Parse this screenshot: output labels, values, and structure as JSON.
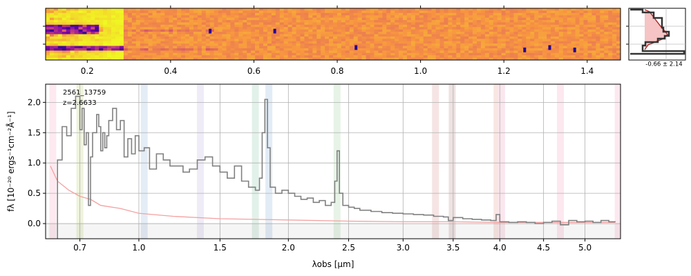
{
  "chart_data": [
    {
      "type": "heatmap",
      "panel": "2d-spectrum",
      "xlabel": "",
      "xlim": [
        0.1,
        1.48
      ],
      "xticks": [
        0.2,
        0.4,
        0.6,
        0.8,
        1.0,
        1.2,
        1.4
      ],
      "xtick_labels": [
        "0.2",
        "0.4",
        "0.6",
        "0.8",
        "1.0",
        "1.2",
        "1.4"
      ],
      "rows": 22,
      "colormap": "plasma",
      "features": [
        {
          "x": 0.495,
          "row": 9,
          "note": "dark emission knot"
        },
        {
          "x": 0.65,
          "row": 9,
          "note": "dark emission knot"
        },
        {
          "x": 0.845,
          "row": 16,
          "note": "dark pixel"
        },
        {
          "x": 1.25,
          "row": 17,
          "note": "dark pixel"
        },
        {
          "x": 1.31,
          "row": 16,
          "note": "dark pixel"
        },
        {
          "x": 1.37,
          "row": 17,
          "note": "dark pixel"
        }
      ]
    },
    {
      "type": "line",
      "panel": "spatial-profile",
      "annotation": "-0.66 ± 2.14",
      "peak_value": -0.66,
      "width_value": 2.14
    },
    {
      "type": "line",
      "panel": "1d-spectrum",
      "title": "",
      "xlabel": "λobs [μm]",
      "ylabel": "fλ [10⁻²⁰ ergs⁻¹cm⁻²Å⁻¹]",
      "xlim": [
        0.55,
        5.45
      ],
      "ylim": [
        -0.25,
        2.3
      ],
      "x_scale": "sqrt",
      "xticks": [
        0.7,
        1.0,
        1.5,
        2.0,
        2.5,
        3.0,
        3.5,
        4.0,
        4.5,
        5.0
      ],
      "xtick_labels": [
        "0.7",
        "1.0",
        "1.5",
        "2.0",
        "2.5",
        "3.0",
        "3.5",
        "4.0",
        "4.5",
        "5.0"
      ],
      "yticks": [
        0.0,
        0.5,
        1.0,
        1.5,
        2.0
      ],
      "ytick_labels": [
        "0.0",
        "0.5",
        "1.0",
        "1.5",
        "2.0"
      ],
      "grid": true,
      "annotations": [
        "2561_13759",
        "z=2.6633"
      ],
      "series": [
        {
          "color": "#808080",
          "step": true,
          "points": [
            [
              0.56,
              -0.3
            ],
            [
              0.6,
              1.05
            ],
            [
              0.62,
              1.6
            ],
            [
              0.64,
              1.45
            ],
            [
              0.66,
              1.9
            ],
            [
              0.68,
              2.1
            ],
            [
              0.7,
              1.55
            ],
            [
              0.71,
              1.9
            ],
            [
              0.72,
              1.3
            ],
            [
              0.73,
              1.5
            ],
            [
              0.74,
              0.3
            ],
            [
              0.75,
              1.1
            ],
            [
              0.76,
              1.5
            ],
            [
              0.78,
              1.8
            ],
            [
              0.79,
              1.6
            ],
            [
              0.8,
              1.2
            ],
            [
              0.81,
              1.5
            ],
            [
              0.82,
              1.25
            ],
            [
              0.83,
              1.45
            ],
            [
              0.84,
              1.7
            ],
            [
              0.86,
              1.9
            ],
            [
              0.88,
              1.55
            ],
            [
              0.9,
              1.7
            ],
            [
              0.92,
              1.1
            ],
            [
              0.94,
              1.4
            ],
            [
              0.96,
              1.15
            ],
            [
              0.98,
              1.45
            ],
            [
              1.0,
              1.2
            ],
            [
              1.03,
              1.25
            ],
            [
              1.06,
              0.9
            ],
            [
              1.1,
              1.15
            ],
            [
              1.14,
              1.05
            ],
            [
              1.18,
              0.95
            ],
            [
              1.22,
              0.95
            ],
            [
              1.26,
              0.85
            ],
            [
              1.3,
              0.9
            ],
            [
              1.35,
              1.05
            ],
            [
              1.4,
              1.1
            ],
            [
              1.45,
              0.95
            ],
            [
              1.5,
              0.85
            ],
            [
              1.55,
              0.75
            ],
            [
              1.6,
              0.95
            ],
            [
              1.65,
              0.7
            ],
            [
              1.7,
              0.6
            ],
            [
              1.75,
              0.55
            ],
            [
              1.78,
              0.75
            ],
            [
              1.8,
              1.5
            ],
            [
              1.82,
              2.05
            ],
            [
              1.84,
              1.25
            ],
            [
              1.86,
              0.6
            ],
            [
              1.9,
              0.5
            ],
            [
              1.95,
              0.55
            ],
            [
              2.0,
              0.5
            ],
            [
              2.05,
              0.45
            ],
            [
              2.1,
              0.4
            ],
            [
              2.15,
              0.42
            ],
            [
              2.2,
              0.35
            ],
            [
              2.25,
              0.38
            ],
            [
              2.3,
              0.3
            ],
            [
              2.35,
              0.35
            ],
            [
              2.38,
              0.7
            ],
            [
              2.4,
              1.2
            ],
            [
              2.42,
              0.5
            ],
            [
              2.45,
              0.3
            ],
            [
              2.5,
              0.27
            ],
            [
              2.55,
              0.25
            ],
            [
              2.6,
              0.22
            ],
            [
              2.7,
              0.2
            ],
            [
              2.8,
              0.18
            ],
            [
              2.9,
              0.17
            ],
            [
              3.0,
              0.16
            ],
            [
              3.1,
              0.15
            ],
            [
              3.2,
              0.14
            ],
            [
              3.3,
              0.12
            ],
            [
              3.4,
              0.11
            ],
            [
              3.45,
              0.05
            ],
            [
              3.5,
              0.1
            ],
            [
              3.6,
              0.08
            ],
            [
              3.7,
              0.07
            ],
            [
              3.8,
              0.06
            ],
            [
              3.9,
              0.05
            ],
            [
              3.96,
              0.15
            ],
            [
              4.0,
              0.03
            ],
            [
              4.1,
              0.02
            ],
            [
              4.2,
              0.03
            ],
            [
              4.3,
              0.02
            ],
            [
              4.4,
              0.0
            ],
            [
              4.5,
              0.02
            ],
            [
              4.6,
              0.04
            ],
            [
              4.7,
              -0.02
            ],
            [
              4.8,
              0.05
            ],
            [
              4.9,
              0.03
            ],
            [
              5.0,
              0.04
            ],
            [
              5.1,
              0.02
            ],
            [
              5.2,
              0.05
            ],
            [
              5.3,
              0.03
            ],
            [
              5.38,
              0.02
            ]
          ]
        },
        {
          "color": "#f4a0a0",
          "step": false,
          "points": [
            [
              0.57,
              0.95
            ],
            [
              0.6,
              0.7
            ],
            [
              0.65,
              0.55
            ],
            [
              0.7,
              0.45
            ],
            [
              0.75,
              0.4
            ],
            [
              0.8,
              0.3
            ],
            [
              0.9,
              0.25
            ],
            [
              1.0,
              0.17
            ],
            [
              1.2,
              0.12
            ],
            [
              1.5,
              0.08
            ],
            [
              2.0,
              0.06
            ],
            [
              2.5,
              0.04
            ],
            [
              3.0,
              0.03
            ],
            [
              3.5,
              0.03
            ],
            [
              4.0,
              0.02
            ],
            [
              4.5,
              0.02
            ],
            [
              5.0,
              0.02
            ],
            [
              5.38,
              0.02
            ]
          ]
        }
      ],
      "line_bands": [
        {
          "x": 0.58,
          "color": "#fde9ef"
        },
        {
          "x": 0.7,
          "color": "#eef4dc"
        },
        {
          "x": 1.03,
          "color": "#e4ecf6"
        },
        {
          "x": 1.37,
          "color": "#efecf8"
        },
        {
          "x": 1.75,
          "color": "#e2f1ea"
        },
        {
          "x": 1.85,
          "color": "#e2ecf6"
        },
        {
          "x": 2.4,
          "color": "#e6f3e6"
        },
        {
          "x": 3.32,
          "color": "#f6e4e4"
        },
        {
          "x": 3.49,
          "color": "#eee2e2"
        },
        {
          "x": 3.97,
          "color": "#f8e6e2"
        },
        {
          "x": 4.02,
          "color": "#fbe6ee"
        },
        {
          "x": 4.7,
          "color": "#fde8ef"
        },
        {
          "x": 5.42,
          "color": "#fde8ef"
        }
      ]
    }
  ]
}
